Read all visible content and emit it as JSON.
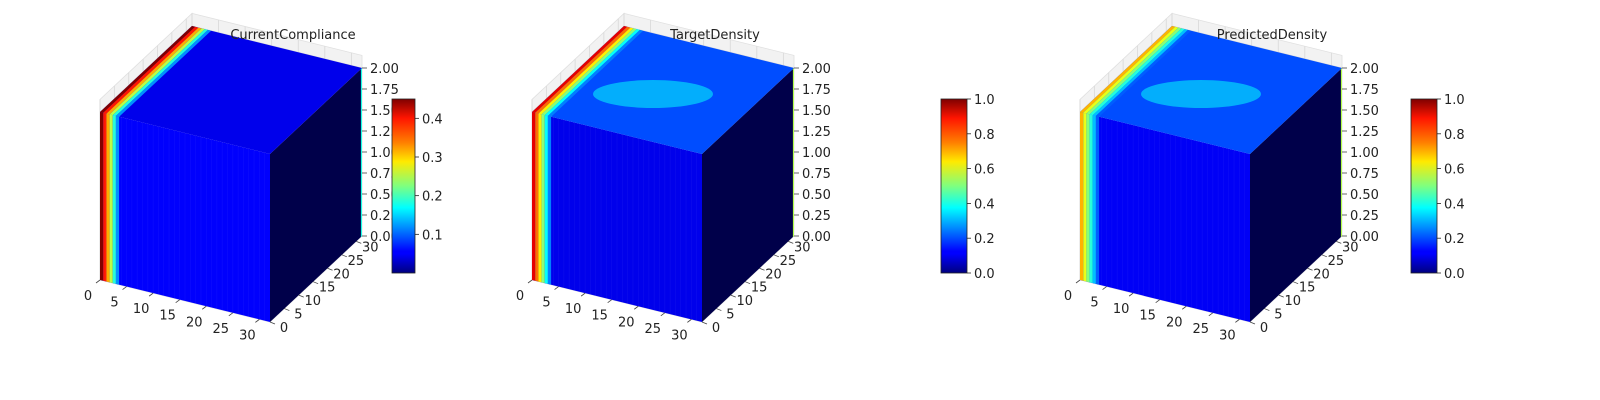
{
  "chart_data": [
    {
      "type": "voxel-3d",
      "title": "CurrentCompliance",
      "x_ticks": [
        "0",
        "5",
        "10",
        "15",
        "20",
        "25",
        "30"
      ],
      "y_ticks": [
        "0",
        "5",
        "10",
        "15",
        "20",
        "25",
        "30"
      ],
      "z_ticks": [
        "0.00",
        "0.25",
        "0.50",
        "0.75",
        "1.00",
        "1.25",
        "1.50",
        "1.75",
        "2.00"
      ],
      "xlim": [
        0,
        32
      ],
      "ylim": [
        0,
        32
      ],
      "zlim": [
        0,
        2
      ],
      "colorbar": {
        "min": 0.0,
        "max": 0.45,
        "ticks": [
          "0.1",
          "0.2",
          "0.3",
          "0.4"
        ],
        "tick_values": [
          0.1,
          0.2,
          0.3,
          0.4
        ]
      },
      "edge_values": {
        "left_strip": 0.45,
        "front_face": 0.06,
        "top_face": 0.05,
        "right_face": 0.02
      }
    },
    {
      "type": "voxel-3d",
      "title": "TargetDensity",
      "x_ticks": [
        "0",
        "5",
        "10",
        "15",
        "20",
        "25",
        "30"
      ],
      "y_ticks": [
        "0",
        "5",
        "10",
        "15",
        "20",
        "25",
        "30"
      ],
      "z_ticks": [
        "0.00",
        "0.25",
        "0.50",
        "0.75",
        "1.00",
        "1.25",
        "1.50",
        "1.75",
        "2.00"
      ],
      "xlim": [
        0,
        32
      ],
      "ylim": [
        0,
        32
      ],
      "zlim": [
        0,
        2
      ],
      "colorbar": {
        "min": 0.0,
        "max": 1.0,
        "ticks": [
          "0.0",
          "0.2",
          "0.4",
          "0.6",
          "0.8",
          "1.0"
        ],
        "tick_values": [
          0,
          0.2,
          0.4,
          0.6,
          0.8,
          1.0
        ]
      },
      "edge_values": {
        "left_strip": 0.9,
        "front_face": 0.1,
        "top_face": 0.3,
        "right_face": 0.03
      }
    },
    {
      "type": "voxel-3d",
      "title": "PredictedDensity",
      "x_ticks": [
        "0",
        "5",
        "10",
        "15",
        "20",
        "25",
        "30"
      ],
      "y_ticks": [
        "0",
        "5",
        "10",
        "15",
        "20",
        "25",
        "30"
      ],
      "z_ticks": [
        "0.00",
        "0.25",
        "0.50",
        "0.75",
        "1.00",
        "1.25",
        "1.50",
        "1.75",
        "2.00"
      ],
      "xlim": [
        0,
        32
      ],
      "ylim": [
        0,
        32
      ],
      "zlim": [
        0,
        2
      ],
      "colorbar": {
        "min": 0.0,
        "max": 1.0,
        "ticks": [
          "0.0",
          "0.2",
          "0.4",
          "0.6",
          "0.8",
          "1.0"
        ],
        "tick_values": [
          0,
          0.2,
          0.4,
          0.6,
          0.8,
          1.0
        ]
      },
      "edge_values": {
        "left_strip": 0.7,
        "front_face": 0.12,
        "top_face": 0.3,
        "right_face": 0.04
      }
    }
  ]
}
